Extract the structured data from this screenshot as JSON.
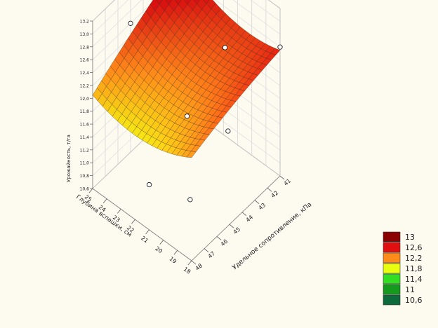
{
  "chart_data": {
    "type": "surface3d",
    "title": "",
    "xlabel": "Удельное сопротивление, кПа",
    "ylabel": "Глубина вспашки, см",
    "zlabel": "Урожайность, т/га",
    "x_ticks": [
      "41",
      "42",
      "43",
      "44",
      "45",
      "46",
      "47",
      "48"
    ],
    "y_ticks": [
      "25",
      "24",
      "23",
      "22",
      "21",
      "20",
      "19",
      "18"
    ],
    "z_ticks": [
      "10,6",
      "10,8",
      "11,0",
      "11,2",
      "11,4",
      "11,6",
      "11,8",
      "12,0",
      "12,2",
      "12,4",
      "12,6",
      "12,8",
      "13,0",
      "13,2"
    ],
    "legend": {
      "position": "bottom-right",
      "entries": [
        {
          "label": "13",
          "color": "#8b0000"
        },
        {
          "label": "12,6",
          "color": "#e01010"
        },
        {
          "label": "12,2",
          "color": "#ff8c1a"
        },
        {
          "label": "11,8",
          "color": "#e8ff10"
        },
        {
          "label": "11,4",
          "color": "#33dd22"
        },
        {
          "label": "11",
          "color": "#149a1c"
        },
        {
          "label": "10,6",
          "color": "#0d6a3a"
        }
      ]
    },
    "points": [
      {
        "x": 45,
        "y": 25,
        "z": 12.6
      },
      {
        "x": 42,
        "y": 21,
        "z": 12.3
      },
      {
        "x": 45,
        "y": 21,
        "z": 11.8
      },
      {
        "x": 48,
        "y": 21,
        "z": 11.3
      },
      {
        "x": 44,
        "y": 19,
        "z": 11.7
      },
      {
        "x": 47,
        "y": 19,
        "z": 11.2
      },
      {
        "x": 41,
        "y": 18,
        "z": 12.6
      }
    ]
  }
}
